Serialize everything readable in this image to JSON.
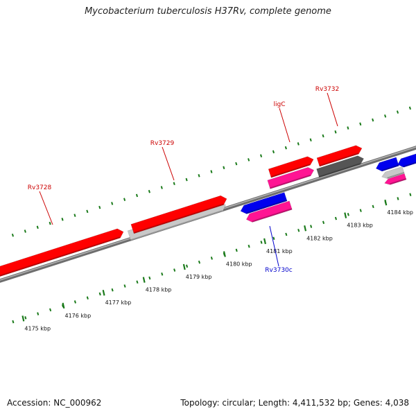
{
  "title": "Mycobacterium tuberculosis H37Rv, complete genome",
  "footer": {
    "accession": "Accession: NC_000962",
    "summary": "Topology: circular; Length: 4,411,532 bp; Genes: 4,038"
  },
  "colors": {
    "backbone": "#888888",
    "ticks": "#1a7a1a",
    "label_forward": "#cc0000",
    "label_reverse": "#0000cc",
    "red": "#ff0000",
    "blue": "#0000ee",
    "pink": "#ff1493",
    "light_gray": "#c8c8c8",
    "dark_gray": "#555555"
  },
  "scale": {
    "unit": "kbp",
    "labels": [
      "4175 kbp",
      "4176 kbp",
      "4177 kbp",
      "4178 kbp",
      "4179 kbp",
      "4180 kbp",
      "4181 kbp",
      "4182 kbp",
      "4183 kbp",
      "4184 kbp"
    ]
  },
  "features": [
    {
      "label": "Rv3728",
      "strand": "+",
      "color": "red",
      "callout": true
    },
    {
      "label": "",
      "strand": "+",
      "color": "light_gray",
      "callout": false
    },
    {
      "label": "Rv3729",
      "strand": "+",
      "color": "red",
      "callout": true
    },
    {
      "label": "",
      "strand": "-",
      "color": "blue",
      "callout": false
    },
    {
      "label": "Rv3730c",
      "strand": "-",
      "color": "pink",
      "callout": true
    },
    {
      "label": "ligC",
      "strand": "+",
      "color": "pink",
      "callout": true
    },
    {
      "label": "",
      "strand": "+",
      "color": "red",
      "callout": false
    },
    {
      "label": "",
      "strand": "+",
      "color": "dark_gray",
      "callout": false
    },
    {
      "label": "Rv3732",
      "strand": "+",
      "color": "red",
      "callout": true
    },
    {
      "label": "",
      "strand": "-",
      "color": "blue",
      "callout": false
    },
    {
      "label": "",
      "strand": "-",
      "color": "blue",
      "callout": false
    },
    {
      "label": "",
      "strand": "-",
      "color": "light_gray",
      "callout": false
    },
    {
      "label": "",
      "strand": "-",
      "color": "pink",
      "callout": false
    }
  ]
}
